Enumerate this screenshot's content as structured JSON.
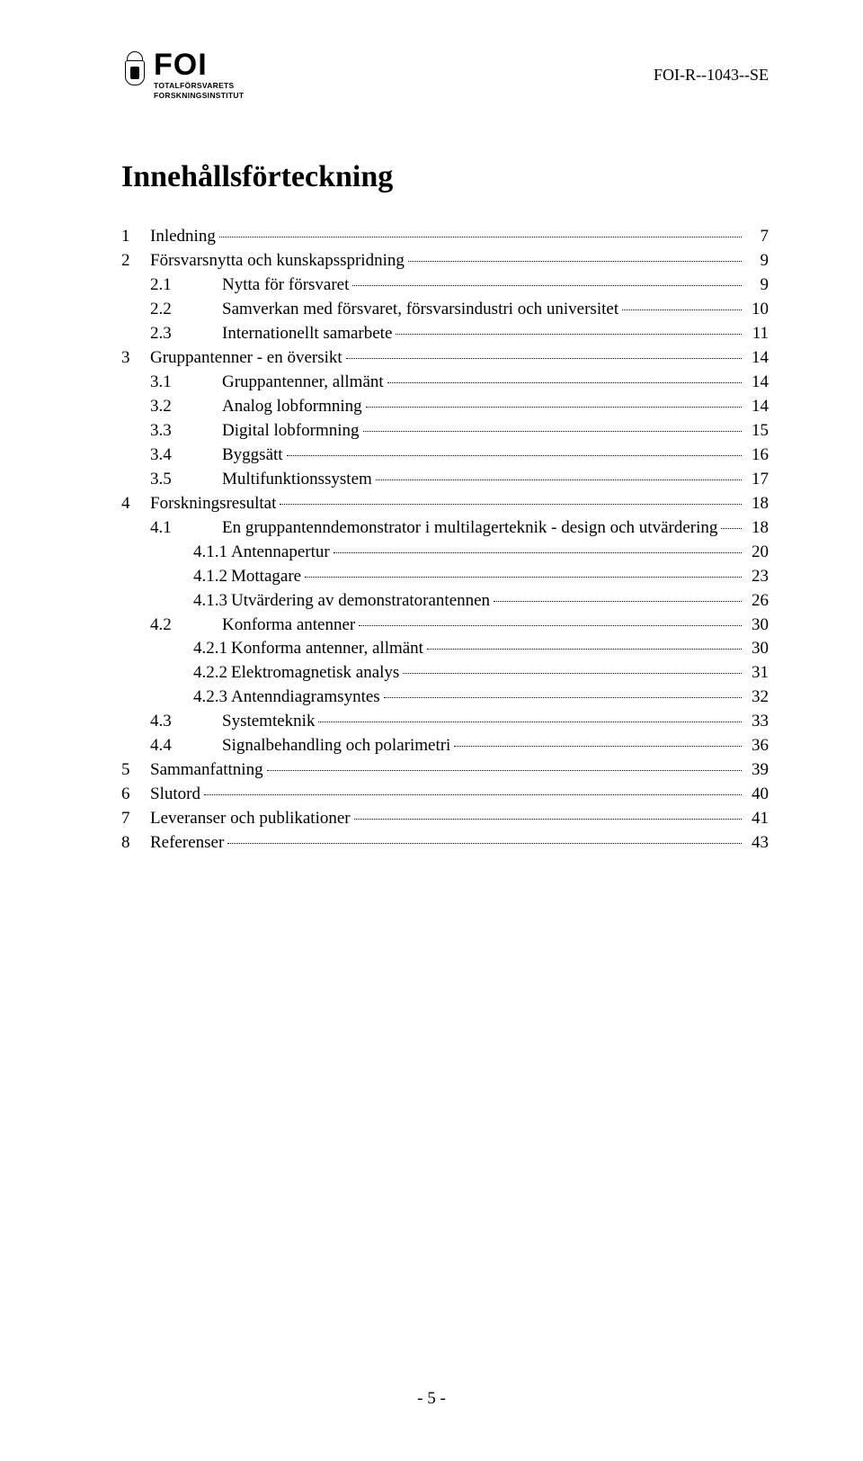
{
  "header": {
    "logo_text": "FOI",
    "logo_sub1": "TOTALFÖRSVARETS",
    "logo_sub2": "FORSKNINGSINSTITUT",
    "doc_id": "FOI-R--1043--SE"
  },
  "title": "Innehållsförteckning",
  "toc": [
    {
      "level": 1,
      "num": "1",
      "label": "Inledning",
      "page": "7"
    },
    {
      "level": 1,
      "num": "2",
      "label": "Försvarsnytta och kunskapsspridning",
      "page": "9"
    },
    {
      "level": 2,
      "num": "2.1",
      "label": "Nytta för försvaret",
      "page": "9"
    },
    {
      "level": 2,
      "num": "2.2",
      "label": "Samverkan med försvaret, försvarsindustri och universitet",
      "page": "10"
    },
    {
      "level": 2,
      "num": "2.3",
      "label": "Internationellt samarbete",
      "page": "11"
    },
    {
      "level": 1,
      "num": "3",
      "label": "Gruppantenner - en översikt",
      "page": "14"
    },
    {
      "level": 2,
      "num": "3.1",
      "label": "Gruppantenner, allmänt",
      "page": "14"
    },
    {
      "level": 2,
      "num": "3.2",
      "label": "Analog lobformning",
      "page": "14"
    },
    {
      "level": 2,
      "num": "3.3",
      "label": "Digital lobformning",
      "page": "15"
    },
    {
      "level": 2,
      "num": "3.4",
      "label": "Byggsätt",
      "page": "16"
    },
    {
      "level": 2,
      "num": "3.5",
      "label": "Multifunktionssystem",
      "page": "17"
    },
    {
      "level": 1,
      "num": "4",
      "label": "Forskningsresultat",
      "page": "18"
    },
    {
      "level": 2,
      "num": "4.1",
      "label": "En gruppantenndemonstrator i multilagerteknik - design och utvärdering",
      "page": "18"
    },
    {
      "level": 3,
      "num": "4.1.1",
      "label": "Antennapertur",
      "page": "20"
    },
    {
      "level": 3,
      "num": "4.1.2",
      "label": "Mottagare",
      "page": "23"
    },
    {
      "level": 3,
      "num": "4.1.3",
      "label": "Utvärdering av demonstratorantennen",
      "page": "26"
    },
    {
      "level": 2,
      "num": "4.2",
      "label": "Konforma antenner",
      "page": "30"
    },
    {
      "level": 3,
      "num": "4.2.1",
      "label": "Konforma antenner, allmänt",
      "page": "30"
    },
    {
      "level": 3,
      "num": "4.2.2",
      "label": "Elektromagnetisk analys",
      "page": "31"
    },
    {
      "level": 3,
      "num": "4.2.3",
      "label": "Antenndiagramsyntes",
      "page": "32"
    },
    {
      "level": 2,
      "num": "4.3",
      "label": "Systemteknik",
      "page": "33"
    },
    {
      "level": 2,
      "num": "4.4",
      "label": "Signalbehandling och polarimetri",
      "page": "36"
    },
    {
      "level": 1,
      "num": "5",
      "label": "Sammanfattning",
      "page": "39"
    },
    {
      "level": 1,
      "num": "6",
      "label": "Slutord",
      "page": "40"
    },
    {
      "level": 1,
      "num": "7",
      "label": "Leveranser och publikationer",
      "page": "41"
    },
    {
      "level": 1,
      "num": "8",
      "label": "Referenser",
      "page": "43"
    }
  ],
  "footer": "- 5 -"
}
